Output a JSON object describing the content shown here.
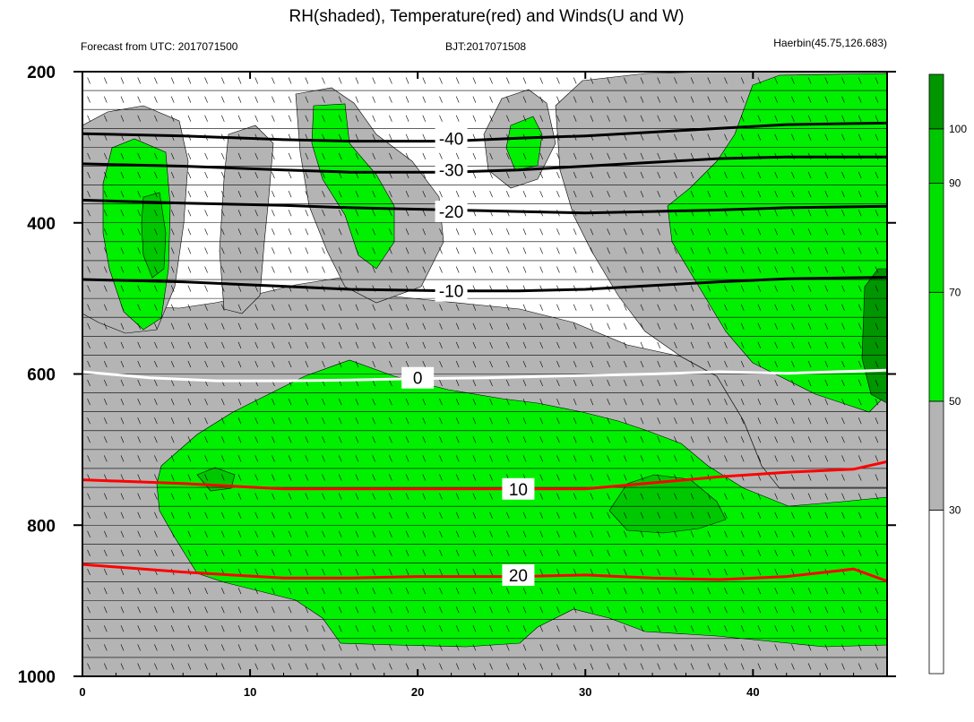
{
  "title": "RH(shaded), Temperature(red) and Winds(U and W)",
  "subtitle_left": "Forecast from UTC: 2017071500",
  "subtitle_center": "BJT:2017071508",
  "subtitle_right": "Haerbin(45.75,126.683)",
  "colors": {
    "rh_bands": [
      "#ffffff",
      "#b4b4b4",
      "#00f000",
      "#00e100",
      "#00c800",
      "#009600",
      "#007800"
    ],
    "temperature": "#ff0000",
    "zero_isotherm": "#ffffff",
    "cold_isotherm": "#000000"
  },
  "chart_data": {
    "type": "contour",
    "description_axes": "time (forecast hour) vs pressure level (hPa)",
    "x_ticks": [
      "0",
      "10",
      "20",
      "30",
      "40"
    ],
    "y_ticks": [
      "200",
      "400",
      "600",
      "800",
      "1000"
    ],
    "xlim": [
      0,
      48
    ],
    "ylim": [
      1000,
      200
    ],
    "colorbar": {
      "labels": [
        "30",
        "50",
        "70",
        "90",
        "100"
      ],
      "levels": [
        30,
        50,
        70,
        90,
        100
      ],
      "max": 110
    },
    "temperature_contours": [
      {
        "label": "-40",
        "points": [
          [
            0,
            282
          ],
          [
            6,
            285
          ],
          [
            12,
            290
          ],
          [
            16,
            292
          ],
          [
            22,
            292
          ],
          [
            26,
            288
          ],
          [
            30,
            285
          ],
          [
            34,
            280
          ],
          [
            38,
            275
          ],
          [
            42,
            270
          ],
          [
            48,
            268
          ]
        ]
      },
      {
        "label": "-30",
        "points": [
          [
            0,
            322
          ],
          [
            6,
            325
          ],
          [
            12,
            330
          ],
          [
            16,
            333
          ],
          [
            22,
            333
          ],
          [
            26,
            330
          ],
          [
            30,
            325
          ],
          [
            34,
            320
          ],
          [
            38,
            315
          ],
          [
            42,
            313
          ],
          [
            48,
            313
          ]
        ]
      },
      {
        "label": "-20",
        "points": [
          [
            0,
            370
          ],
          [
            6,
            374
          ],
          [
            12,
            377
          ],
          [
            16,
            380
          ],
          [
            22,
            383
          ],
          [
            26,
            385
          ],
          [
            30,
            387
          ],
          [
            34,
            385
          ],
          [
            38,
            383
          ],
          [
            42,
            380
          ],
          [
            48,
            378
          ]
        ]
      },
      {
        "label": "-10",
        "points": [
          [
            0,
            475
          ],
          [
            6,
            478
          ],
          [
            12,
            484
          ],
          [
            16,
            488
          ],
          [
            22,
            490
          ],
          [
            26,
            490
          ],
          [
            30,
            488
          ],
          [
            34,
            483
          ],
          [
            38,
            478
          ],
          [
            42,
            474
          ],
          [
            48,
            472
          ]
        ]
      },
      {
        "label": "0",
        "points": [
          [
            0,
            597
          ],
          [
            4,
            605
          ],
          [
            8,
            609
          ],
          [
            12,
            609
          ],
          [
            16,
            608
          ],
          [
            20,
            606
          ],
          [
            24,
            605
          ],
          [
            28,
            603
          ],
          [
            34,
            600
          ],
          [
            38,
            597
          ],
          [
            42,
            599
          ],
          [
            48,
            595
          ]
        ]
      },
      {
        "label": "10",
        "points": [
          [
            0,
            740
          ],
          [
            6,
            745
          ],
          [
            12,
            752
          ],
          [
            16,
            752
          ],
          [
            20,
            752
          ],
          [
            26,
            752
          ],
          [
            30,
            752
          ],
          [
            34,
            744
          ],
          [
            38,
            736
          ],
          [
            42,
            730
          ],
          [
            46,
            726
          ],
          [
            48,
            716
          ]
        ]
      },
      {
        "label": "20",
        "points": [
          [
            0,
            852
          ],
          [
            6,
            862
          ],
          [
            12,
            870
          ],
          [
            16,
            870
          ],
          [
            20,
            868
          ],
          [
            26,
            868
          ],
          [
            30,
            866
          ],
          [
            34,
            870
          ],
          [
            38,
            872
          ],
          [
            42,
            868
          ],
          [
            46,
            858
          ],
          [
            48,
            874
          ]
        ]
      }
    ]
  }
}
